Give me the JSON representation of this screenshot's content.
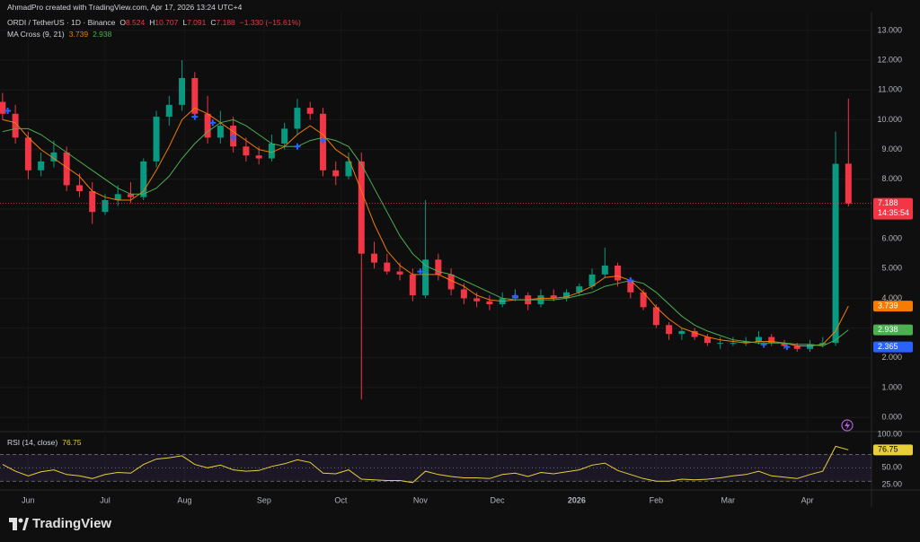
{
  "watermark": "AhmadPro created with TradingView.com, Apr 17, 2026 13:24 UTC+4",
  "footer_logo": "TradingView",
  "chart_data": [
    {
      "type": "candlestick",
      "title": "ORDI / TetherUS · 1D · Binance",
      "ohlc_labels": [
        "O",
        "H",
        "L",
        "C"
      ],
      "change_label": "−1.330 (−15.61%)",
      "countdown": "14:35:54",
      "up_color": "#089981",
      "down_color": "#f23645",
      "x": [
        0,
        5,
        10,
        15,
        20,
        25,
        30,
        35,
        40,
        45,
        50,
        55,
        60,
        65,
        70,
        75,
        80,
        85,
        90,
        95,
        100,
        105,
        110,
        115,
        120,
        125,
        130,
        135,
        140,
        145,
        150,
        155,
        160,
        165,
        170,
        175,
        180,
        185,
        190,
        195,
        200,
        205,
        210,
        215,
        220,
        225,
        230,
        235,
        240,
        245,
        250,
        255,
        260,
        265,
        270,
        275,
        280,
        285,
        290,
        295,
        300,
        305,
        310,
        315,
        320,
        325,
        330
      ],
      "open": [
        10.6,
        10.2,
        9.4,
        8.3,
        8.6,
        8.9,
        7.8,
        7.6,
        6.9,
        7.3,
        7.5,
        7.4,
        8.6,
        10.1,
        10.5,
        11.4,
        10.2,
        9.4,
        9.8,
        9.1,
        8.8,
        8.7,
        9.2,
        9.7,
        10.4,
        10.2,
        8.3,
        8.1,
        8.6,
        5.5,
        5.2,
        4.9,
        4.8,
        4.1,
        5.3,
        4.8,
        4.3,
        4.0,
        3.9,
        3.8,
        4.0,
        4.1,
        3.8,
        4.1,
        4.0,
        4.2,
        4.4,
        4.8,
        5.1,
        4.6,
        4.2,
        3.7,
        3.1,
        2.8,
        2.9,
        2.7,
        2.5,
        2.5,
        2.5,
        2.55,
        2.7,
        2.5,
        2.4,
        2.3,
        2.45,
        2.5,
        8.524
      ],
      "high": [
        10.9,
        10.5,
        9.6,
        8.9,
        9.3,
        9.1,
        8.2,
        7.9,
        7.5,
        7.8,
        7.9,
        8.7,
        10.3,
        10.8,
        12.0,
        11.6,
        10.8,
        10.3,
        10.1,
        9.4,
        9.1,
        9.5,
        9.9,
        10.7,
        10.6,
        10.4,
        8.6,
        8.9,
        8.9,
        5.9,
        5.5,
        5.2,
        5.0,
        7.3,
        5.5,
        5.0,
        4.5,
        4.2,
        4.1,
        4.2,
        4.3,
        4.2,
        4.3,
        4.3,
        4.3,
        4.5,
        5.0,
        5.7,
        5.2,
        4.7,
        4.3,
        3.8,
        3.2,
        3.0,
        3.0,
        2.8,
        2.7,
        2.7,
        2.7,
        2.9,
        2.8,
        2.6,
        2.5,
        2.6,
        2.7,
        9.6,
        10.707
      ],
      "low": [
        10.0,
        9.2,
        8.0,
        8.1,
        8.4,
        7.6,
        7.4,
        6.5,
        6.8,
        7.1,
        7.2,
        7.3,
        8.4,
        9.8,
        10.3,
        10.0,
        9.2,
        9.2,
        8.9,
        8.6,
        8.5,
        8.6,
        9.0,
        9.5,
        10.0,
        8.1,
        7.8,
        8.0,
        0.6,
        5.0,
        4.8,
        4.6,
        3.9,
        4.0,
        4.6,
        4.1,
        3.8,
        3.7,
        3.6,
        3.7,
        3.9,
        3.6,
        3.7,
        3.9,
        3.9,
        4.1,
        4.3,
        4.7,
        4.4,
        4.0,
        3.6,
        3.0,
        2.6,
        2.6,
        2.6,
        2.4,
        2.3,
        2.4,
        2.4,
        2.45,
        2.4,
        2.3,
        2.2,
        2.2,
        2.35,
        2.4,
        7.091
      ],
      "close": [
        10.2,
        9.4,
        8.3,
        8.6,
        8.9,
        7.8,
        7.6,
        6.9,
        7.3,
        7.5,
        7.4,
        8.6,
        10.1,
        10.5,
        11.4,
        10.2,
        9.4,
        9.8,
        9.1,
        8.8,
        8.7,
        9.2,
        9.7,
        10.4,
        10.2,
        8.3,
        8.1,
        8.6,
        5.5,
        5.2,
        4.9,
        4.8,
        4.1,
        5.3,
        4.8,
        4.3,
        4.0,
        3.9,
        3.8,
        4.0,
        4.1,
        3.8,
        4.1,
        4.0,
        4.2,
        4.4,
        4.8,
        5.1,
        4.6,
        4.2,
        3.7,
        3.1,
        2.8,
        2.9,
        2.7,
        2.5,
        2.5,
        2.5,
        2.55,
        2.7,
        2.5,
        2.4,
        2.3,
        2.45,
        2.5,
        8.518,
        7.188
      ],
      "indicator": {
        "title": "MA Cross (9, 21)",
        "lines": [
          {
            "color": "#f57c00",
            "values": [
              10.0,
              9.9,
              9.4,
              9.0,
              8.7,
              8.4,
              8.1,
              7.6,
              7.4,
              7.3,
              7.3,
              7.6,
              8.3,
              9.1,
              10.0,
              10.4,
              10.2,
              9.9,
              9.6,
              9.3,
              9.0,
              8.9,
              9.1,
              9.5,
              9.8,
              9.5,
              9.0,
              8.7,
              7.6,
              6.5,
              5.6,
              5.1,
              4.8,
              4.8,
              4.8,
              4.6,
              4.4,
              4.1,
              3.95,
              3.9,
              3.95,
              3.95,
              4.0,
              4.0,
              4.05,
              4.2,
              4.4,
              4.7,
              4.75,
              4.6,
              4.2,
              3.7,
              3.3,
              3.0,
              2.85,
              2.7,
              2.6,
              2.55,
              2.5,
              2.55,
              2.55,
              2.5,
              2.4,
              2.4,
              2.45,
              2.9,
              3.739
            ]
          },
          {
            "color": "#4caf50",
            "values": [
              9.6,
              9.7,
              9.7,
              9.5,
              9.2,
              8.9,
              8.6,
              8.3,
              8.0,
              7.7,
              7.5,
              7.5,
              7.7,
              8.1,
              8.7,
              9.2,
              9.6,
              9.9,
              10.0,
              9.8,
              9.5,
              9.2,
              9.1,
              9.1,
              9.3,
              9.4,
              9.3,
              9.1,
              8.5,
              7.7,
              6.9,
              6.1,
              5.5,
              5.1,
              4.9,
              4.8,
              4.6,
              4.4,
              4.2,
              4.0,
              3.95,
              3.95,
              3.95,
              3.95,
              4.0,
              4.1,
              4.2,
              4.4,
              4.5,
              4.6,
              4.5,
              4.2,
              3.8,
              3.4,
              3.1,
              2.9,
              2.75,
              2.6,
              2.55,
              2.5,
              2.5,
              2.5,
              2.45,
              2.45,
              2.4,
              2.6,
              2.938
            ]
          }
        ]
      },
      "crosses": {
        "color": "#2962ff",
        "x": [
          2,
          75,
          82,
          90,
          115,
          125,
          163,
          200,
          245,
          297,
          306
        ],
        "values": [
          10.3,
          10.1,
          9.9,
          9.4,
          9.1,
          9.3,
          4.9,
          4.05,
          4.6,
          2.45,
          2.365
        ]
      },
      "xlim": [
        -1,
        339
      ],
      "xticks": [
        {
          "value": 10,
          "label": "Jun"
        },
        {
          "value": 40,
          "label": "Jul"
        },
        {
          "value": 71,
          "label": "Aug"
        },
        {
          "value": 102,
          "label": "Sep"
        },
        {
          "value": 132,
          "label": "Oct"
        },
        {
          "value": 163,
          "label": "Nov"
        },
        {
          "value": 193,
          "label": "Dec"
        },
        {
          "value": 224,
          "label": "2026"
        },
        {
          "value": 255,
          "label": "Feb"
        },
        {
          "value": 283,
          "label": "Mar"
        },
        {
          "value": 314,
          "label": "Apr"
        }
      ],
      "ylim": [
        -0.45,
        13.42
      ],
      "yticks": [
        {
          "value": 0,
          "label": "0.000"
        },
        {
          "value": 1,
          "label": "1.000"
        },
        {
          "value": 2,
          "label": "2.000"
        },
        {
          "value": 3,
          "label": "3.000"
        },
        {
          "value": 4,
          "label": "4.000"
        },
        {
          "value": 5,
          "label": "5.000"
        },
        {
          "value": 6,
          "label": "6.000"
        },
        {
          "value": 7,
          "label": "7.000"
        },
        {
          "value": 8,
          "label": "8.000"
        },
        {
          "value": 9,
          "label": "9.000"
        },
        {
          "value": 10,
          "label": "10.000"
        },
        {
          "value": 11,
          "label": "11.000"
        },
        {
          "value": 12,
          "label": "12.000"
        },
        {
          "value": 13,
          "label": "13.000"
        }
      ],
      "grid": true
    },
    {
      "type": "line",
      "title": "RSI (14, close)",
      "color": "#e8cf3a",
      "band_color": "#7e57c2",
      "bands": [
        70,
        50,
        30
      ],
      "x": [
        0,
        5,
        10,
        15,
        20,
        25,
        30,
        35,
        40,
        45,
        50,
        55,
        60,
        65,
        70,
        75,
        80,
        85,
        90,
        95,
        100,
        105,
        110,
        115,
        120,
        125,
        130,
        135,
        140,
        145,
        150,
        155,
        160,
        165,
        170,
        175,
        180,
        185,
        190,
        195,
        200,
        205,
        210,
        215,
        220,
        225,
        230,
        235,
        240,
        245,
        250,
        255,
        260,
        265,
        270,
        275,
        280,
        285,
        290,
        295,
        300,
        305,
        310,
        315,
        320,
        325,
        330
      ],
      "values": [
        55,
        45,
        38,
        44,
        47,
        40,
        38,
        34,
        40,
        43,
        42,
        55,
        63,
        65,
        68,
        55,
        50,
        54,
        47,
        45,
        46,
        52,
        56,
        62,
        58,
        42,
        41,
        47,
        33,
        32,
        31,
        31,
        28,
        45,
        40,
        37,
        35,
        35,
        34,
        40,
        42,
        37,
        43,
        41,
        44,
        47,
        54,
        57,
        46,
        40,
        34,
        30,
        30,
        33,
        32,
        33,
        35,
        38,
        40,
        45,
        38,
        36,
        34,
        40,
        45,
        82,
        76.75
      ],
      "ylim": [
        18.3,
        101.3
      ],
      "yticks": [
        {
          "value": 100,
          "label": "100.00"
        },
        {
          "value": 75,
          "label": "75.00"
        },
        {
          "value": 50,
          "label": "50.00"
        },
        {
          "value": 25,
          "label": "25.00"
        }
      ]
    }
  ]
}
